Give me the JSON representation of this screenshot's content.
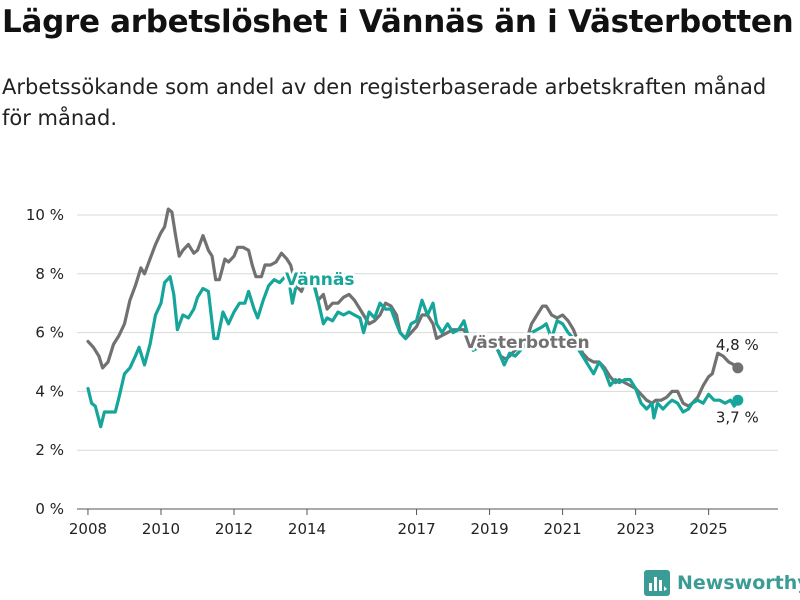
{
  "header": {
    "title": "Lägre arbetslöshet i Vännäs än i Västerbotten",
    "subtitle": "Arbetssökande som andel av den registerbaserade arbetskraften månad för månad."
  },
  "branding": {
    "name": "Newsworthy",
    "icon": "newsworthy-logo-icon",
    "color": "#3a9c94"
  },
  "chart_data": {
    "type": "line",
    "title": "Lägre arbetslöshet i Vännäs än i Västerbotten",
    "xlabel": "",
    "ylabel": "",
    "xlim": [
      2007.7,
      2026.9
    ],
    "ylim": [
      0,
      10
    ],
    "y_ticks": [
      0,
      2,
      4,
      6,
      8,
      10
    ],
    "y_tick_labels": [
      "0 %",
      "2 %",
      "4 %",
      "6 %",
      "8 %",
      "10 %"
    ],
    "x_ticks": [
      2008,
      2010,
      2012,
      2014,
      2017,
      2019,
      2021,
      2023,
      2025
    ],
    "x_tick_labels": [
      "2008",
      "2010",
      "2012",
      "2014",
      "2017",
      "2019",
      "2021",
      "2023",
      "2025"
    ],
    "grid": "horizontal",
    "series": [
      {
        "name": "Västerbotten",
        "color": "#717171",
        "label": "Västerbotten",
        "end_label": "4,8 %",
        "points": [
          [
            2008.0,
            5.7
          ],
          [
            2008.15,
            5.5
          ],
          [
            2008.3,
            5.2
          ],
          [
            2008.4,
            4.8
          ],
          [
            2008.55,
            5.0
          ],
          [
            2008.7,
            5.6
          ],
          [
            2008.85,
            5.9
          ],
          [
            2009.0,
            6.3
          ],
          [
            2009.15,
            7.1
          ],
          [
            2009.3,
            7.6
          ],
          [
            2009.45,
            8.2
          ],
          [
            2009.55,
            8.0
          ],
          [
            2009.7,
            8.5
          ],
          [
            2009.85,
            9.0
          ],
          [
            2010.0,
            9.4
          ],
          [
            2010.1,
            9.6
          ],
          [
            2010.2,
            10.2
          ],
          [
            2010.3,
            10.1
          ],
          [
            2010.4,
            9.3
          ],
          [
            2010.5,
            8.6
          ],
          [
            2010.6,
            8.8
          ],
          [
            2010.75,
            9.0
          ],
          [
            2010.9,
            8.7
          ],
          [
            2011.0,
            8.8
          ],
          [
            2011.15,
            9.3
          ],
          [
            2011.3,
            8.8
          ],
          [
            2011.4,
            8.6
          ],
          [
            2011.5,
            7.8
          ],
          [
            2011.6,
            7.8
          ],
          [
            2011.75,
            8.5
          ],
          [
            2011.85,
            8.4
          ],
          [
            2012.0,
            8.6
          ],
          [
            2012.1,
            8.9
          ],
          [
            2012.25,
            8.9
          ],
          [
            2012.4,
            8.8
          ],
          [
            2012.5,
            8.3
          ],
          [
            2012.6,
            7.9
          ],
          [
            2012.75,
            7.9
          ],
          [
            2012.85,
            8.3
          ],
          [
            2013.0,
            8.3
          ],
          [
            2013.15,
            8.4
          ],
          [
            2013.3,
            8.7
          ],
          [
            2013.45,
            8.5
          ],
          [
            2013.55,
            8.3
          ],
          [
            2013.7,
            7.6
          ],
          [
            2013.85,
            7.4
          ],
          [
            2014.0,
            7.9
          ],
          [
            2014.15,
            7.9
          ],
          [
            2014.3,
            7.1
          ],
          [
            2014.45,
            7.3
          ],
          [
            2014.55,
            6.8
          ],
          [
            2014.7,
            7.0
          ],
          [
            2014.85,
            7.0
          ],
          [
            2015.0,
            7.2
          ],
          [
            2015.15,
            7.3
          ],
          [
            2015.3,
            7.1
          ],
          [
            2015.45,
            6.8
          ],
          [
            2015.55,
            6.6
          ],
          [
            2015.7,
            6.3
          ],
          [
            2015.85,
            6.4
          ],
          [
            2016.0,
            6.6
          ],
          [
            2016.15,
            7.0
          ],
          [
            2016.3,
            6.9
          ],
          [
            2016.45,
            6.6
          ],
          [
            2016.55,
            6.0
          ],
          [
            2016.7,
            5.8
          ],
          [
            2016.85,
            6.0
          ],
          [
            2017.0,
            6.2
          ],
          [
            2017.15,
            6.6
          ],
          [
            2017.3,
            6.6
          ],
          [
            2017.45,
            6.3
          ],
          [
            2017.55,
            5.8
          ],
          [
            2017.7,
            5.9
          ],
          [
            2017.85,
            6.0
          ],
          [
            2018.0,
            6.1
          ],
          [
            2018.15,
            6.1
          ],
          [
            2018.3,
            6.1
          ],
          [
            2018.45,
            5.7
          ],
          [
            2018.55,
            5.4
          ],
          [
            2018.7,
            5.5
          ],
          [
            2018.85,
            5.5
          ],
          [
            2019.0,
            5.5
          ],
          [
            2019.15,
            5.6
          ],
          [
            2019.3,
            5.2
          ],
          [
            2019.45,
            5.1
          ],
          [
            2019.55,
            5.2
          ],
          [
            2019.7,
            5.4
          ],
          [
            2019.85,
            5.5
          ],
          [
            2020.0,
            5.7
          ],
          [
            2020.15,
            6.3
          ],
          [
            2020.3,
            6.6
          ],
          [
            2020.45,
            6.9
          ],
          [
            2020.55,
            6.9
          ],
          [
            2020.7,
            6.6
          ],
          [
            2020.85,
            6.5
          ],
          [
            2021.0,
            6.6
          ],
          [
            2021.15,
            6.4
          ],
          [
            2021.3,
            6.1
          ],
          [
            2021.45,
            5.6
          ],
          [
            2021.55,
            5.3
          ],
          [
            2021.7,
            5.1
          ],
          [
            2021.85,
            5.0
          ],
          [
            2022.0,
            5.0
          ],
          [
            2022.15,
            4.8
          ],
          [
            2022.3,
            4.5
          ],
          [
            2022.45,
            4.3
          ],
          [
            2022.55,
            4.4
          ],
          [
            2022.7,
            4.3
          ],
          [
            2022.85,
            4.2
          ],
          [
            2023.0,
            4.1
          ],
          [
            2023.15,
            3.9
          ],
          [
            2023.3,
            3.7
          ],
          [
            2023.45,
            3.6
          ],
          [
            2023.55,
            3.7
          ],
          [
            2023.7,
            3.7
          ],
          [
            2023.85,
            3.8
          ],
          [
            2024.0,
            4.0
          ],
          [
            2024.15,
            4.0
          ],
          [
            2024.3,
            3.6
          ],
          [
            2024.45,
            3.5
          ],
          [
            2024.55,
            3.6
          ],
          [
            2024.7,
            3.8
          ],
          [
            2024.85,
            4.2
          ],
          [
            2025.0,
            4.5
          ],
          [
            2025.1,
            4.6
          ],
          [
            2025.25,
            5.3
          ],
          [
            2025.4,
            5.2
          ],
          [
            2025.55,
            5.0
          ],
          [
            2025.7,
            4.9
          ],
          [
            2025.8,
            4.8
          ]
        ]
      },
      {
        "name": "Vännäs",
        "color": "#16a59a",
        "label": "Vännäs",
        "end_label": "3,7 %",
        "points": [
          [
            2008.0,
            4.1
          ],
          [
            2008.1,
            3.6
          ],
          [
            2008.2,
            3.5
          ],
          [
            2008.35,
            2.8
          ],
          [
            2008.45,
            3.3
          ],
          [
            2008.6,
            3.3
          ],
          [
            2008.75,
            3.3
          ],
          [
            2008.85,
            3.8
          ],
          [
            2009.0,
            4.6
          ],
          [
            2009.15,
            4.8
          ],
          [
            2009.3,
            5.2
          ],
          [
            2009.4,
            5.5
          ],
          [
            2009.55,
            4.9
          ],
          [
            2009.7,
            5.6
          ],
          [
            2009.85,
            6.6
          ],
          [
            2010.0,
            7.0
          ],
          [
            2010.1,
            7.7
          ],
          [
            2010.25,
            7.9
          ],
          [
            2010.35,
            7.3
          ],
          [
            2010.45,
            6.1
          ],
          [
            2010.6,
            6.6
          ],
          [
            2010.75,
            6.5
          ],
          [
            2010.9,
            6.8
          ],
          [
            2011.0,
            7.2
          ],
          [
            2011.15,
            7.5
          ],
          [
            2011.3,
            7.4
          ],
          [
            2011.45,
            5.8
          ],
          [
            2011.55,
            5.8
          ],
          [
            2011.7,
            6.7
          ],
          [
            2011.85,
            6.3
          ],
          [
            2012.0,
            6.7
          ],
          [
            2012.15,
            7.0
          ],
          [
            2012.3,
            7.0
          ],
          [
            2012.4,
            7.4
          ],
          [
            2012.55,
            6.8
          ],
          [
            2012.65,
            6.5
          ],
          [
            2012.8,
            7.1
          ],
          [
            2012.95,
            7.6
          ],
          [
            2013.1,
            7.8
          ],
          [
            2013.25,
            7.7
          ],
          [
            2013.4,
            7.9
          ],
          [
            2013.5,
            7.8
          ],
          [
            2013.6,
            7.0
          ],
          [
            2013.7,
            7.6
          ],
          [
            2013.85,
            7.8
          ],
          [
            2014.0,
            7.6
          ],
          [
            2014.15,
            7.8
          ],
          [
            2014.3,
            7.1
          ],
          [
            2014.45,
            6.3
          ],
          [
            2014.55,
            6.5
          ],
          [
            2014.7,
            6.4
          ],
          [
            2014.85,
            6.7
          ],
          [
            2015.0,
            6.6
          ],
          [
            2015.15,
            6.7
          ],
          [
            2015.3,
            6.6
          ],
          [
            2015.45,
            6.5
          ],
          [
            2015.55,
            6.0
          ],
          [
            2015.7,
            6.7
          ],
          [
            2015.85,
            6.5
          ],
          [
            2016.0,
            7.0
          ],
          [
            2016.15,
            6.8
          ],
          [
            2016.3,
            6.8
          ],
          [
            2016.45,
            6.3
          ],
          [
            2016.55,
            6.0
          ],
          [
            2016.7,
            5.8
          ],
          [
            2016.85,
            6.3
          ],
          [
            2017.0,
            6.4
          ],
          [
            2017.15,
            7.1
          ],
          [
            2017.3,
            6.6
          ],
          [
            2017.45,
            7.0
          ],
          [
            2017.55,
            6.3
          ],
          [
            2017.7,
            6.0
          ],
          [
            2017.85,
            6.3
          ],
          [
            2018.0,
            6.0
          ],
          [
            2018.15,
            6.1
          ],
          [
            2018.3,
            6.4
          ],
          [
            2018.45,
            5.7
          ],
          [
            2018.55,
            5.4
          ],
          [
            2018.7,
            5.5
          ],
          [
            2018.85,
            5.5
          ],
          [
            2019.0,
            5.6
          ],
          [
            2019.15,
            5.7
          ],
          [
            2019.3,
            5.2
          ],
          [
            2019.4,
            4.9
          ],
          [
            2019.55,
            5.3
          ],
          [
            2019.7,
            5.2
          ],
          [
            2019.85,
            5.4
          ],
          [
            2020.0,
            5.6
          ],
          [
            2020.15,
            6.0
          ],
          [
            2020.3,
            6.1
          ],
          [
            2020.45,
            6.2
          ],
          [
            2020.55,
            6.3
          ],
          [
            2020.7,
            5.8
          ],
          [
            2020.85,
            6.4
          ],
          [
            2021.0,
            6.3
          ],
          [
            2021.15,
            6.0
          ],
          [
            2021.3,
            5.8
          ],
          [
            2021.45,
            5.4
          ],
          [
            2021.55,
            5.2
          ],
          [
            2021.7,
            4.9
          ],
          [
            2021.85,
            4.6
          ],
          [
            2022.0,
            5.0
          ],
          [
            2022.15,
            4.7
          ],
          [
            2022.3,
            4.2
          ],
          [
            2022.45,
            4.4
          ],
          [
            2022.55,
            4.3
          ],
          [
            2022.7,
            4.4
          ],
          [
            2022.85,
            4.4
          ],
          [
            2023.0,
            4.1
          ],
          [
            2023.15,
            3.6
          ],
          [
            2023.3,
            3.4
          ],
          [
            2023.45,
            3.6
          ],
          [
            2023.5,
            3.1
          ],
          [
            2023.6,
            3.6
          ],
          [
            2023.75,
            3.4
          ],
          [
            2023.9,
            3.6
          ],
          [
            2024.0,
            3.7
          ],
          [
            2024.15,
            3.6
          ],
          [
            2024.3,
            3.3
          ],
          [
            2024.45,
            3.4
          ],
          [
            2024.55,
            3.6
          ],
          [
            2024.7,
            3.7
          ],
          [
            2024.85,
            3.6
          ],
          [
            2025.0,
            3.9
          ],
          [
            2025.15,
            3.7
          ],
          [
            2025.3,
            3.7
          ],
          [
            2025.45,
            3.6
          ],
          [
            2025.6,
            3.7
          ],
          [
            2025.7,
            3.5
          ],
          [
            2025.8,
            3.7
          ]
        ]
      }
    ]
  }
}
